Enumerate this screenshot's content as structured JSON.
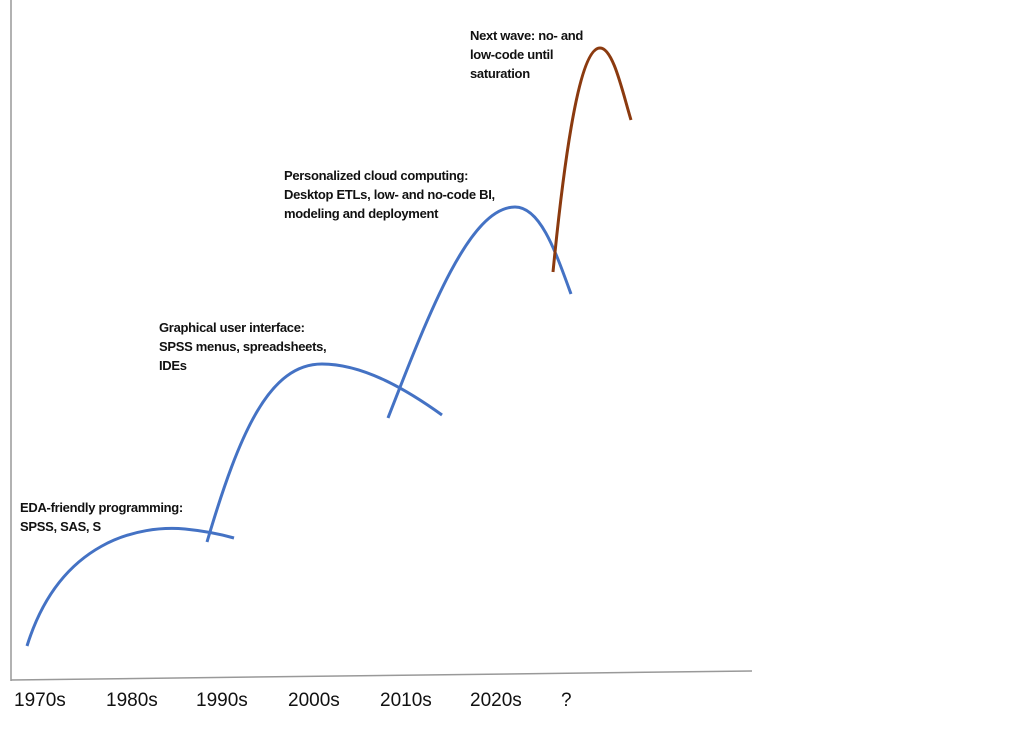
{
  "colors": {
    "wave": "#4472c4",
    "next_wave": "#8b3a0f",
    "axis": "#999999"
  },
  "x_axis": {
    "ticks": [
      "1970s",
      "1980s",
      "1990s",
      "2000s",
      "2010s",
      "2020s",
      "?"
    ]
  },
  "waves": [
    {
      "label": "EDA-friendly programming:\nSPSS, SAS, S"
    },
    {
      "label": "Graphical user interface:\nSPSS menus, spreadsheets,\nIDEs"
    },
    {
      "label": "Personalized cloud computing:\nDesktop ETLs, low- and no-code BI,\nmodeling and deployment"
    },
    {
      "label": "Next wave: no- and\nlow-code until\nsaturation"
    }
  ]
}
